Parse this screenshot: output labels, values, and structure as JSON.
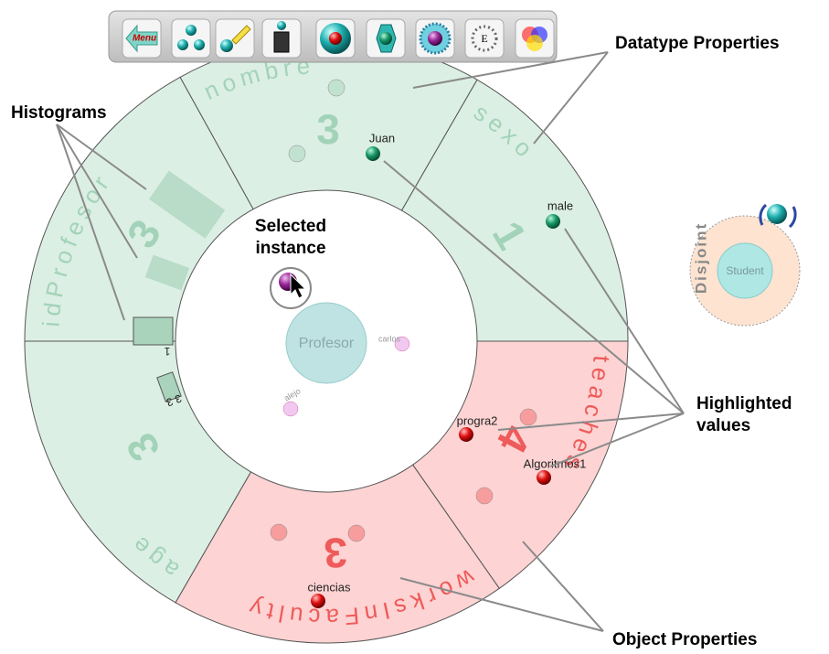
{
  "toolbar": {
    "menu": "Menu",
    "e_icon": "E"
  },
  "annotations": {
    "datatype_properties": "Datatype Properties",
    "histograms": "Histograms",
    "selected_instance": [
      "Selected",
      "instance"
    ],
    "highlighted_values": [
      "Highlighted",
      "values"
    ],
    "object_properties": "Object Properties"
  },
  "concept": {
    "name": "Profesor",
    "instances": [
      "carlos",
      "alejo"
    ]
  },
  "segments": [
    {
      "label": "nombre",
      "count": "3",
      "kind": "datatype",
      "values": [
        "Juan"
      ]
    },
    {
      "label": "sexo",
      "count": "1",
      "kind": "datatype",
      "values": [
        "male"
      ]
    },
    {
      "label": "teaches",
      "count": "4",
      "kind": "object",
      "values": [
        "progra2",
        "Algoritmos1"
      ]
    },
    {
      "label": "worksInFaculty",
      "count": "3",
      "kind": "object",
      "values": [
        "ciencias"
      ]
    },
    {
      "label": "age",
      "count": "3",
      "kind": "datatype",
      "values": []
    },
    {
      "label": "idProfesor",
      "count": "3",
      "kind": "datatype",
      "values": []
    }
  ],
  "histogram_labels": [
    "1",
    "3 3"
  ],
  "disjoint": {
    "label": "Disjoint",
    "class": "Student"
  }
}
